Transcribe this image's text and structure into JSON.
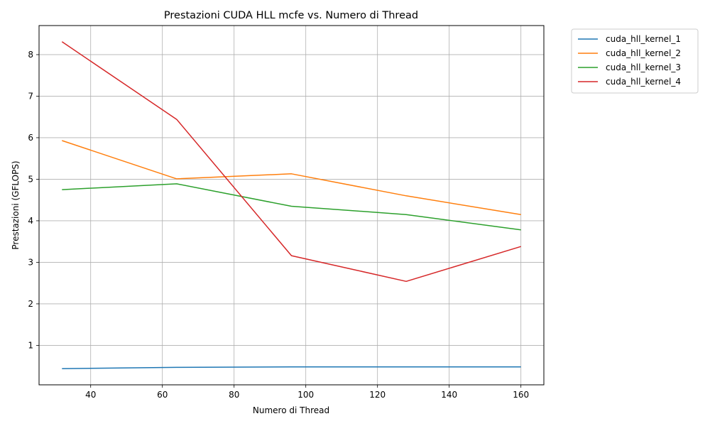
{
  "chart_data": {
    "type": "line",
    "title": "Prestazioni CUDA HLL mcfe vs. Numero di Thread",
    "xlabel": "Numero di Thread",
    "ylabel": "Prestazioni (GFLOPS)",
    "xlim": [
      25.6,
      166.4
    ],
    "ylim": [
      0.05,
      8.7
    ],
    "xticks": [
      40,
      60,
      80,
      100,
      120,
      140,
      160
    ],
    "yticks": [
      1,
      2,
      3,
      4,
      5,
      6,
      7,
      8
    ],
    "grid": true,
    "legend_position": "outside-top-right",
    "x": [
      32,
      64,
      96,
      128,
      160
    ],
    "series": [
      {
        "name": "cuda_hll_kernel_1",
        "color": "#1f77b4",
        "values": [
          0.44,
          0.47,
          0.48,
          0.48,
          0.48
        ]
      },
      {
        "name": "cuda_hll_kernel_2",
        "color": "#ff7f0e",
        "values": [
          5.93,
          5.01,
          5.13,
          4.6,
          4.15
        ]
      },
      {
        "name": "cuda_hll_kernel_3",
        "color": "#2ca02c",
        "values": [
          4.75,
          4.89,
          4.35,
          4.15,
          3.78
        ]
      },
      {
        "name": "cuda_hll_kernel_4",
        "color": "#d62728",
        "values": [
          8.31,
          6.44,
          3.16,
          2.54,
          3.38
        ]
      }
    ]
  }
}
